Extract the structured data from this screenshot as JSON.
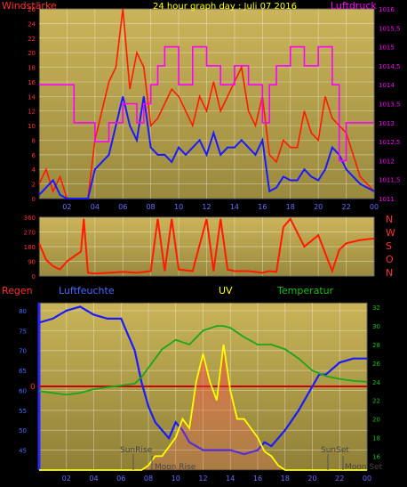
{
  "chart_data": [
    {
      "type": "line",
      "title": "24 hour graph day : Juli 07 2016",
      "ylabel_left": "Windstärke",
      "ylabel_right": "Luftdruck",
      "x_ticks": [
        "02",
        "04",
        "06",
        "08",
        "10",
        "12",
        "14",
        "16",
        "18",
        "20",
        "22",
        "00"
      ],
      "y_left_ticks": [
        "0",
        "2",
        "4",
        "6",
        "8",
        "10",
        "12",
        "14",
        "16",
        "18",
        "20",
        "22",
        "24",
        "26"
      ],
      "y_right_ticks": [
        "1011",
        "1011,5",
        "1012",
        "1012,5",
        "1013",
        "1013,5",
        "1014",
        "1014,5",
        "1015",
        "1015,5",
        "1016"
      ],
      "xlim": [
        0,
        24
      ],
      "ylim_left": [
        0,
        26
      ],
      "ylim_right": [
        1011,
        1016
      ],
      "grid": true,
      "series": [
        {
          "name": "Windböen",
          "axis": "left",
          "color": "#ff1a00",
          "x": [
            0,
            0.5,
            1,
            1.5,
            2,
            2.5,
            3,
            3.5,
            4,
            4.5,
            5,
            5.5,
            6,
            6.5,
            7,
            7.5,
            8,
            8.5,
            9,
            9.5,
            10,
            10.5,
            11,
            11.5,
            12,
            12.5,
            13,
            13.5,
            14,
            14.5,
            15,
            15.5,
            16,
            16.5,
            17,
            17.5,
            18,
            18.5,
            19,
            19.5,
            20,
            20.5,
            21,
            21.5,
            22,
            22.5,
            23,
            23.5,
            24
          ],
          "y": [
            2,
            4,
            1,
            3,
            0,
            0,
            0,
            0,
            8,
            12,
            16,
            18,
            26,
            15,
            20,
            18,
            10,
            11,
            13,
            15,
            14,
            12,
            10,
            14,
            12,
            16,
            12,
            14,
            16,
            18,
            12,
            10,
            14,
            6,
            5,
            8,
            7,
            7,
            12,
            9,
            8,
            14,
            11,
            10,
            9,
            6,
            3,
            2,
            1
          ]
        },
        {
          "name": "Windgeschwindigkeit",
          "axis": "left",
          "color": "#1a1aff",
          "x": [
            0,
            0.5,
            1,
            1.5,
            2,
            2.5,
            3,
            3.5,
            4,
            4.5,
            5,
            5.5,
            6,
            6.5,
            7,
            7.5,
            8,
            8.5,
            9,
            9.5,
            10,
            10.5,
            11,
            11.5,
            12,
            12.5,
            13,
            13.5,
            14,
            14.5,
            15,
            15.5,
            16,
            16.5,
            17,
            17.5,
            18,
            18.5,
            19,
            19.5,
            20,
            20.5,
            21,
            21.5,
            22,
            22.5,
            23,
            23.5,
            24
          ],
          "y": [
            0.5,
            1.5,
            2.5,
            0.5,
            0,
            0,
            0,
            0,
            4,
            5,
            6,
            10,
            14,
            10,
            8,
            14,
            7,
            6,
            6,
            5,
            7,
            6,
            7,
            8,
            6,
            9,
            6,
            7,
            7,
            8,
            7,
            6,
            8,
            1,
            1.5,
            3,
            2.5,
            2.5,
            4,
            3,
            2.5,
            4,
            7,
            6,
            4,
            3,
            2,
            1.5,
            1
          ]
        },
        {
          "name": "Luftdruck",
          "axis": "right",
          "color": "#ff00ff",
          "x": [
            0,
            2,
            2.5,
            3.5,
            4,
            5,
            6,
            7,
            7.5,
            8,
            8.5,
            9,
            10,
            11,
            12,
            13,
            14,
            15,
            16,
            16.5,
            17,
            18,
            19,
            20,
            21,
            21.5,
            22,
            23,
            24
          ],
          "y": [
            1014,
            1014,
            1013,
            1013,
            1012.5,
            1013,
            1013.5,
            1013,
            1013.5,
            1014,
            1014.5,
            1015,
            1014,
            1015,
            1014.5,
            1014,
            1014.5,
            1014,
            1013,
            1014,
            1014.5,
            1015,
            1014.5,
            1015,
            1014,
            1012,
            1013,
            1013,
            1013
          ]
        }
      ]
    },
    {
      "type": "line",
      "ylabel_right": [
        "N",
        "W",
        "S",
        "O",
        "N"
      ],
      "y_ticks": [
        "0",
        "90",
        "180",
        "270",
        "360"
      ],
      "x_ticks": [
        "02",
        "04",
        "06",
        "08",
        "10",
        "12",
        "14",
        "16",
        "18",
        "20",
        "22",
        "00"
      ],
      "xlim": [
        0,
        24
      ],
      "ylim": [
        0,
        360
      ],
      "series": [
        {
          "name": "Windrichtung",
          "color": "#ff1a00",
          "x": [
            0,
            0.5,
            1,
            1.5,
            2,
            2.5,
            3,
            3.2,
            3.5,
            4,
            5,
            6,
            7,
            8,
            8.5,
            9,
            9.5,
            10,
            11,
            12,
            12.5,
            13,
            13.5,
            14,
            15,
            16,
            16.5,
            17,
            17.5,
            18,
            19,
            20,
            21,
            21.5,
            22,
            23,
            24
          ],
          "y": [
            200,
            100,
            60,
            40,
            90,
            120,
            150,
            350,
            20,
            15,
            20,
            25,
            20,
            30,
            350,
            30,
            350,
            40,
            30,
            350,
            30,
            350,
            40,
            30,
            30,
            20,
            30,
            25,
            300,
            350,
            180,
            250,
            30,
            160,
            200,
            220,
            230
          ]
        }
      ]
    },
    {
      "type": "line",
      "labels": {
        "rain": "Regen",
        "humidity": "Luftfeuchte",
        "uv": "UV",
        "temperature": "Temperatur",
        "rain_zero": "0"
      },
      "annotations": {
        "sunrise": "SunRise",
        "moonrise": "Moon Rise",
        "sunset": "SunSet",
        "moonset": "Moon Set"
      },
      "x_ticks": [
        "02",
        "04",
        "06",
        "08",
        "10",
        "12",
        "14",
        "16",
        "18",
        "20",
        "22",
        "00"
      ],
      "y_left_ticks": [
        "45",
        "50",
        "55",
        "60",
        "65",
        "70",
        "75",
        "80"
      ],
      "y_right_ticks": [
        "16",
        "18",
        "20",
        "22",
        "24",
        "26",
        "28",
        "30",
        "32"
      ],
      "xlim": [
        0,
        24
      ],
      "ylim_left": [
        40,
        82
      ],
      "ylim_right": [
        14.5,
        32.5
      ],
      "grid": true,
      "series": [
        {
          "name": "Luftfeuchte",
          "axis": "left",
          "color": "#1a1aff",
          "x": [
            0,
            1,
            2,
            3,
            4,
            5,
            6,
            6.5,
            7,
            7.5,
            8,
            8.5,
            9,
            9.5,
            10,
            10.5,
            11,
            12,
            13,
            14,
            15,
            16,
            16.5,
            17,
            18,
            19,
            20,
            20.5,
            21,
            22,
            23,
            24
          ],
          "y": [
            77,
            78,
            80,
            81,
            79,
            78,
            78,
            74,
            70,
            62,
            56,
            52,
            50,
            48,
            52,
            50,
            47,
            45,
            45,
            45,
            44,
            45,
            47,
            46,
            50,
            55,
            61,
            64,
            64,
            67,
            68,
            68
          ]
        },
        {
          "name": "Temperatur",
          "axis": "right",
          "color": "#19a619",
          "x": [
            0,
            1,
            2,
            3,
            4,
            5,
            6,
            7,
            7.5,
            8,
            8.5,
            9,
            10,
            11,
            12,
            13,
            13.5,
            14,
            15,
            16,
            17,
            18,
            19,
            20,
            21,
            22,
            23,
            24
          ],
          "y": [
            23,
            22.8,
            22.6,
            22.8,
            23.2,
            23.4,
            23.6,
            23.8,
            24.5,
            25.5,
            26.5,
            27.5,
            28.5,
            28,
            29.5,
            30,
            30,
            29.8,
            28.8,
            28,
            28,
            27.5,
            26.5,
            25.2,
            24.6,
            24.3,
            24.1,
            24
          ]
        },
        {
          "name": "UV",
          "axis": "right",
          "color": "#ffff00",
          "x": [
            0,
            7.5,
            8,
            8.5,
            9,
            9.5,
            10,
            10.5,
            11,
            11.5,
            12,
            12.5,
            13,
            13.5,
            14,
            14.5,
            15,
            15.5,
            16,
            16.5,
            17,
            17.5,
            18,
            24
          ],
          "y": [
            14.5,
            14.5,
            15,
            16,
            16,
            17,
            18,
            20,
            19,
            24,
            27,
            24,
            22,
            28,
            23,
            20,
            20,
            19,
            18,
            16.5,
            16,
            15,
            14.5,
            14.5
          ]
        }
      ]
    }
  ]
}
